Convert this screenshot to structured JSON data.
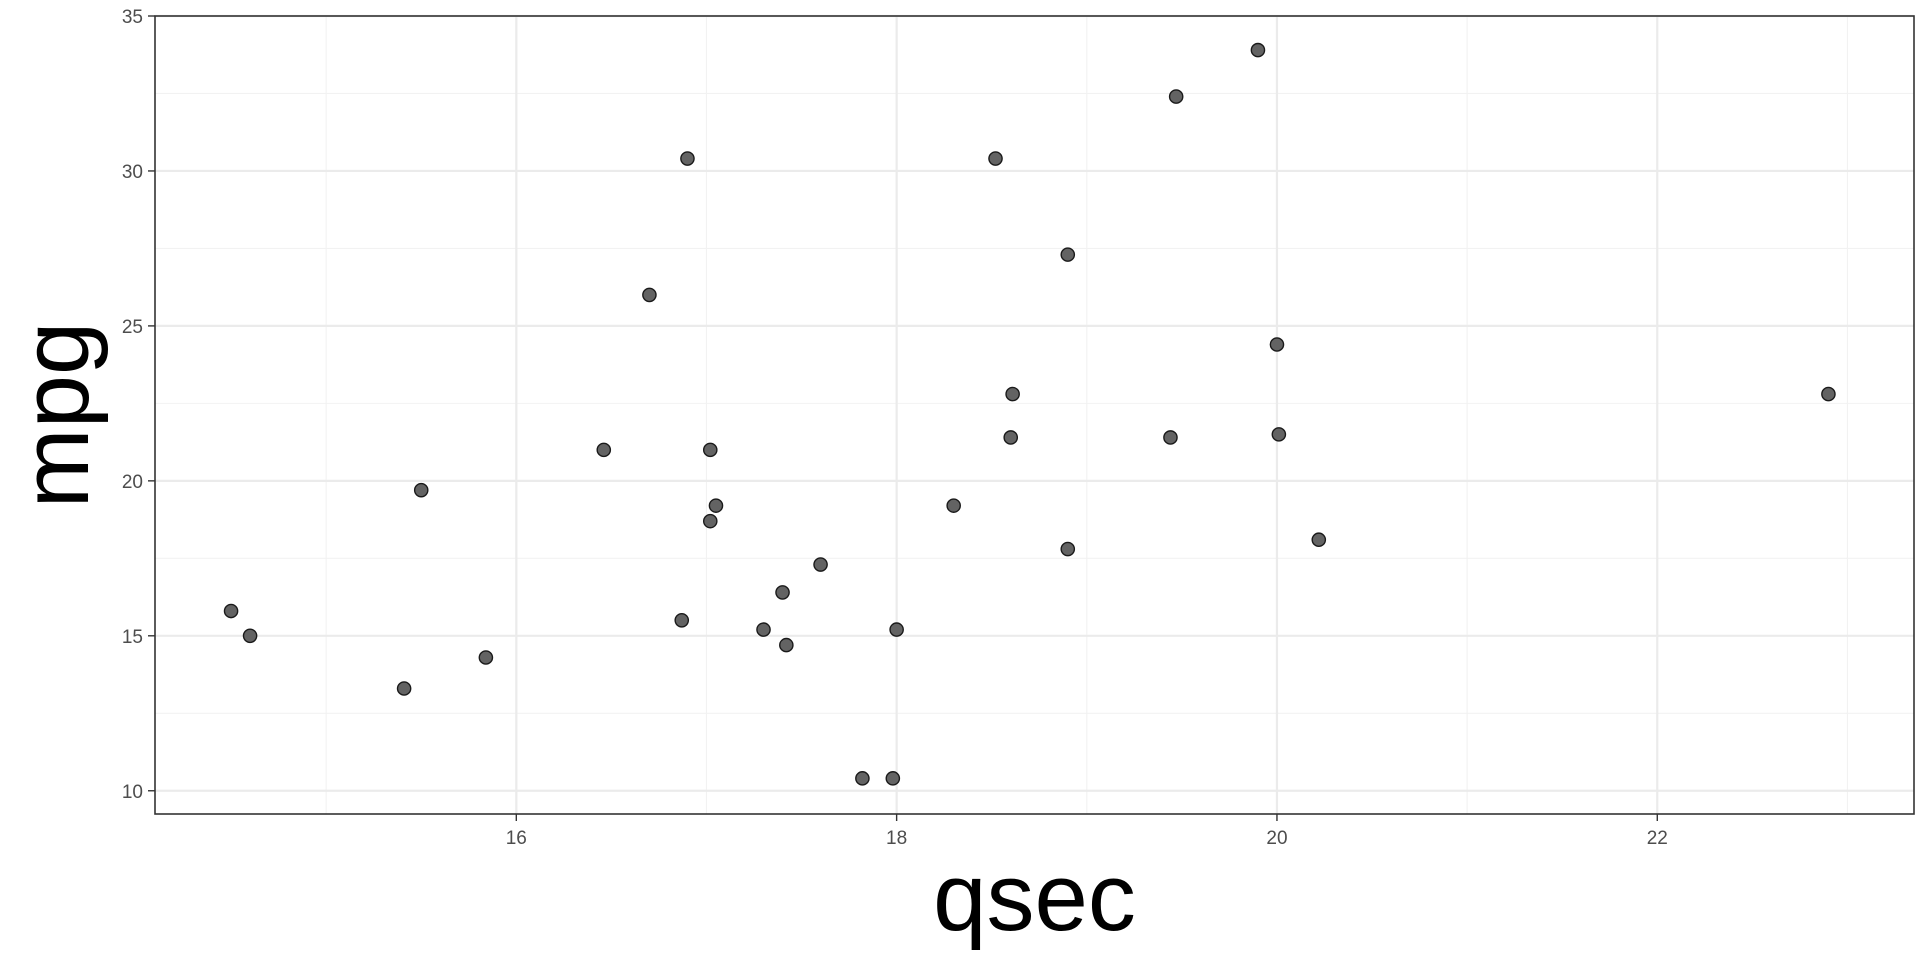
{
  "chart_data": {
    "type": "scatter",
    "title": "",
    "xlabel": "qsec",
    "ylabel": "mpg",
    "xlim": [
      14.1,
      23.35
    ],
    "ylim": [
      9.25,
      35.0
    ],
    "x_ticks": [
      16,
      18,
      20,
      22
    ],
    "x_tick_labels": [
      "16",
      "18",
      "20",
      "22"
    ],
    "x_minor": [
      15,
      17,
      19,
      21,
      23
    ],
    "y_ticks": [
      10,
      15,
      20,
      25,
      30,
      35
    ],
    "y_tick_labels": [
      "10",
      "15",
      "20",
      "25",
      "30",
      "35"
    ],
    "y_minor": [
      12.5,
      17.5,
      22.5,
      27.5,
      32.5
    ],
    "grid": true,
    "legend": "none",
    "point_fill": "#636363",
    "point_stroke": "#1a1a1a",
    "points": [
      {
        "x": 16.46,
        "y": 21.0
      },
      {
        "x": 17.02,
        "y": 21.0
      },
      {
        "x": 18.61,
        "y": 22.8
      },
      {
        "x": 19.44,
        "y": 21.4
      },
      {
        "x": 17.02,
        "y": 18.7
      },
      {
        "x": 20.22,
        "y": 18.1
      },
      {
        "x": 15.84,
        "y": 14.3
      },
      {
        "x": 20.0,
        "y": 24.4
      },
      {
        "x": 22.9,
        "y": 22.8
      },
      {
        "x": 18.3,
        "y": 19.2
      },
      {
        "x": 18.9,
        "y": 17.8
      },
      {
        "x": 17.4,
        "y": 16.4
      },
      {
        "x": 17.6,
        "y": 17.3
      },
      {
        "x": 18.0,
        "y": 15.2
      },
      {
        "x": 17.98,
        "y": 10.4
      },
      {
        "x": 17.82,
        "y": 10.4
      },
      {
        "x": 17.42,
        "y": 14.7
      },
      {
        "x": 19.47,
        "y": 32.4
      },
      {
        "x": 18.52,
        "y": 30.4
      },
      {
        "x": 19.9,
        "y": 33.9
      },
      {
        "x": 20.01,
        "y": 21.5
      },
      {
        "x": 16.87,
        "y": 15.5
      },
      {
        "x": 17.3,
        "y": 15.2
      },
      {
        "x": 15.41,
        "y": 13.3
      },
      {
        "x": 17.05,
        "y": 19.2
      },
      {
        "x": 18.9,
        "y": 27.3
      },
      {
        "x": 16.7,
        "y": 26.0
      },
      {
        "x": 16.9,
        "y": 30.4
      },
      {
        "x": 14.5,
        "y": 15.8
      },
      {
        "x": 15.5,
        "y": 19.7
      },
      {
        "x": 14.6,
        "y": 15.0
      },
      {
        "x": 18.6,
        "y": 21.4
      }
    ]
  }
}
